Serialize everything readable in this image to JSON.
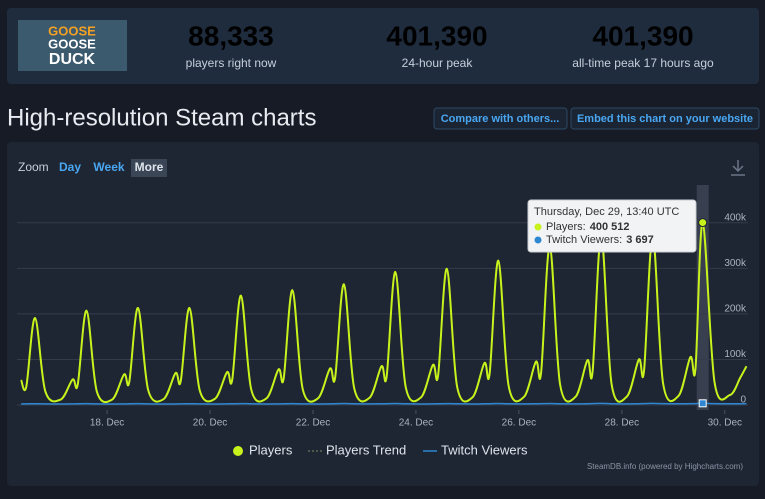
{
  "header": {
    "logo_lines": [
      "GOOSE",
      "GOOSE",
      "DUCK"
    ],
    "stats": [
      {
        "value": "88,333",
        "label": "players right now"
      },
      {
        "value": "401,390",
        "label": "24-hour peak"
      },
      {
        "value": "401,390",
        "label": "all-time peak 17 hours ago"
      }
    ]
  },
  "section": {
    "title": "High-resolution Steam charts",
    "buttons": [
      "Compare with others...",
      "Embed this chart on your website"
    ]
  },
  "zoom": {
    "label": "Zoom",
    "options": [
      "Day",
      "Week",
      "More"
    ]
  },
  "chart_data": {
    "type": "line",
    "credits": "SteamDB.info (powered by Highcharts.com)",
    "x": [
      16.33,
      16.43,
      16.6,
      16.8,
      17.1,
      17.33,
      17.43,
      17.6,
      17.8,
      18.1,
      18.33,
      18.43,
      18.6,
      18.8,
      19.1,
      19.33,
      19.43,
      19.6,
      19.8,
      20.1,
      20.33,
      20.43,
      20.6,
      20.8,
      21.1,
      21.33,
      21.43,
      21.6,
      21.8,
      22.1,
      22.33,
      22.43,
      22.6,
      22.8,
      23.1,
      23.33,
      23.43,
      23.6,
      23.8,
      24.1,
      24.33,
      24.43,
      24.6,
      24.8,
      25.1,
      25.33,
      25.43,
      25.6,
      25.8,
      26.1,
      26.33,
      26.43,
      26.6,
      26.8,
      27.1,
      27.33,
      27.43,
      27.6,
      27.8,
      28.1,
      28.33,
      28.43,
      28.6,
      28.8,
      29.1,
      29.33,
      29.43,
      29.57,
      29.8,
      30.1,
      30.3,
      30.42
    ],
    "series": [
      {
        "name": "Players",
        "color": "#c8f21c",
        "marker": "circle",
        "values": [
          55000,
          40000,
          191000,
          30000,
          12000,
          56000,
          45000,
          207000,
          30000,
          12000,
          67000,
          50000,
          213000,
          32000,
          13000,
          70000,
          52000,
          213000,
          32000,
          14000,
          72000,
          55000,
          240000,
          34000,
          15000,
          78000,
          58000,
          252000,
          35000,
          15000,
          80000,
          60000,
          265000,
          37000,
          16000,
          85000,
          62000,
          292000,
          40000,
          17000,
          88000,
          65000,
          299000,
          40000,
          17000,
          92000,
          68000,
          317000,
          42000,
          18000,
          95000,
          70000,
          348000,
          45000,
          18000,
          98000,
          72000,
          371000,
          46000,
          19000,
          100000,
          75000,
          371000,
          48000,
          20000,
          105000,
          80000,
          400512,
          50000,
          22000,
          60000,
          85000
        ]
      },
      {
        "name": "Players Trend",
        "color": "#5a6f55",
        "marker": "dotted",
        "hidden": true
      },
      {
        "name": "Twitch Viewers",
        "color": "#2f87d1",
        "marker": "line",
        "values": [
          2500,
          2500,
          2800,
          2400,
          2200,
          2500,
          2600,
          3000,
          2500,
          2200,
          2400,
          2600,
          2900,
          2500,
          2100,
          2300,
          2500,
          2800,
          2400,
          2200,
          2500,
          2700,
          3100,
          2600,
          2200,
          2400,
          2600,
          3000,
          2500,
          2300,
          2500,
          2700,
          3200,
          2600,
          2400,
          2600,
          2800,
          3300,
          2700,
          2300,
          2500,
          2700,
          3100,
          2600,
          2300,
          2600,
          2800,
          3300,
          2700,
          2400,
          2700,
          2900,
          3400,
          2800,
          2400,
          2700,
          3000,
          3500,
          2800,
          2500,
          2800,
          3000,
          3500,
          2900,
          2600,
          2900,
          3100,
          3697,
          3000,
          2600,
          2800,
          2900
        ]
      }
    ],
    "xlim": [
      16.25,
      30.45
    ],
    "xticks": [
      {
        "value": 18,
        "label": "18. Dec"
      },
      {
        "value": 20,
        "label": "20. Dec"
      },
      {
        "value": 22,
        "label": "22. Dec"
      },
      {
        "value": 24,
        "label": "24. Dec"
      },
      {
        "value": 26,
        "label": "26. Dec"
      },
      {
        "value": 28,
        "label": "28. Dec"
      },
      {
        "value": 30,
        "label": "30. Dec"
      }
    ],
    "ylim": [
      -11000,
      483000
    ],
    "yticks": [
      0,
      {
        "value": 100000,
        "label": "100k"
      },
      {
        "value": 200000,
        "label": "200k"
      },
      {
        "value": 300000,
        "label": "300k"
      },
      {
        "value": 400000,
        "label": "400k"
      }
    ],
    "grid": true,
    "tooltip": {
      "x": 29.57,
      "title": "Thursday, Dec 29, 13:40 UTC",
      "items": [
        {
          "label": "Players:",
          "value": 400512,
          "value_label": "400 512"
        },
        {
          "label": "Twitch Viewers:",
          "value": 3697,
          "value_label": "3 697"
        }
      ]
    }
  }
}
